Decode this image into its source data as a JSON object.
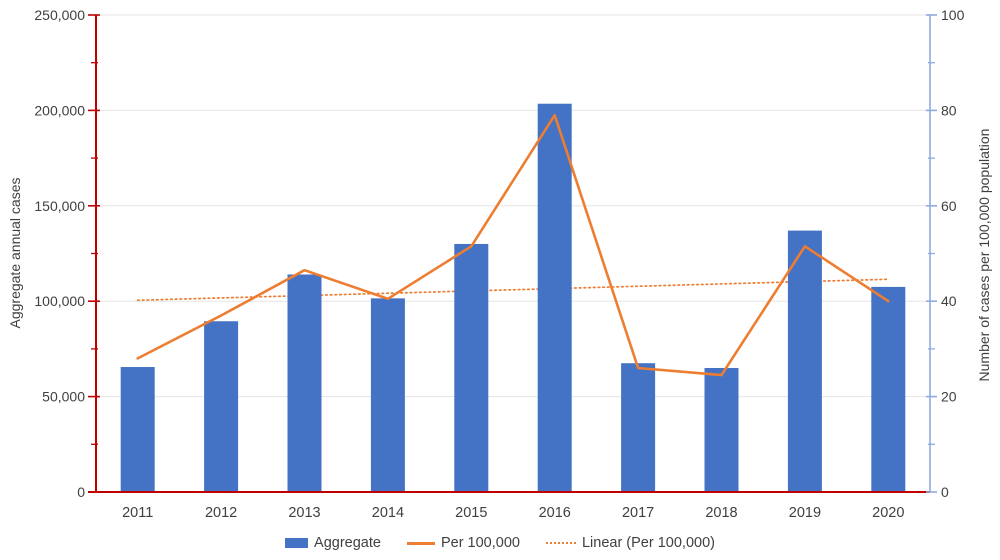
{
  "chart_data": {
    "type": "combo-bar-line",
    "categories": [
      "2011",
      "2012",
      "2013",
      "2014",
      "2015",
      "2016",
      "2017",
      "2018",
      "2019",
      "2020"
    ],
    "series": [
      {
        "name": "Aggregate",
        "type": "bar",
        "axis": "left",
        "color": "#4472C4",
        "values": [
          65500,
          89500,
          114000,
          101500,
          130000,
          203500,
          67500,
          65000,
          137000,
          107500
        ]
      },
      {
        "name": "Per 100,000",
        "type": "line",
        "axis": "right",
        "color": "#ED7D31",
        "values": [
          28,
          37,
          46.5,
          40.5,
          51.5,
          79,
          26,
          24.5,
          51.5,
          40
        ]
      },
      {
        "name": "Linear (Per 100,000)",
        "type": "linear-trendline",
        "axis": "right",
        "color": "#ED7D31",
        "line_style": "dotted",
        "start": 40.2,
        "end": 44.6
      }
    ],
    "left_axis": {
      "label": "Aggregate annual cases",
      "min": 0,
      "max": 250000,
      "major_step": 50000,
      "minor_step": 25000,
      "tick_labels": [
        "0",
        "50,000",
        "100,000",
        "150,000",
        "200,000",
        "250,000"
      ],
      "color": "#C00000"
    },
    "right_axis": {
      "label": "Number of cases per 100,000 population",
      "min": 0,
      "max": 100,
      "major_step": 20,
      "minor_step": 10,
      "tick_labels": [
        "0",
        "20",
        "40",
        "60",
        "80",
        "100"
      ],
      "color": "#8FAADC"
    },
    "legend": [
      {
        "label": "Aggregate",
        "swatch": "bar"
      },
      {
        "label": "Per 100,000",
        "swatch": "line"
      },
      {
        "label": "Linear (Per 100,000)",
        "swatch": "dotted-line"
      }
    ],
    "legend_position": "bottom",
    "grid": true,
    "colors": {
      "grid": "#E6E6E6",
      "text": "#404040",
      "background": "#FFFFFF"
    }
  }
}
